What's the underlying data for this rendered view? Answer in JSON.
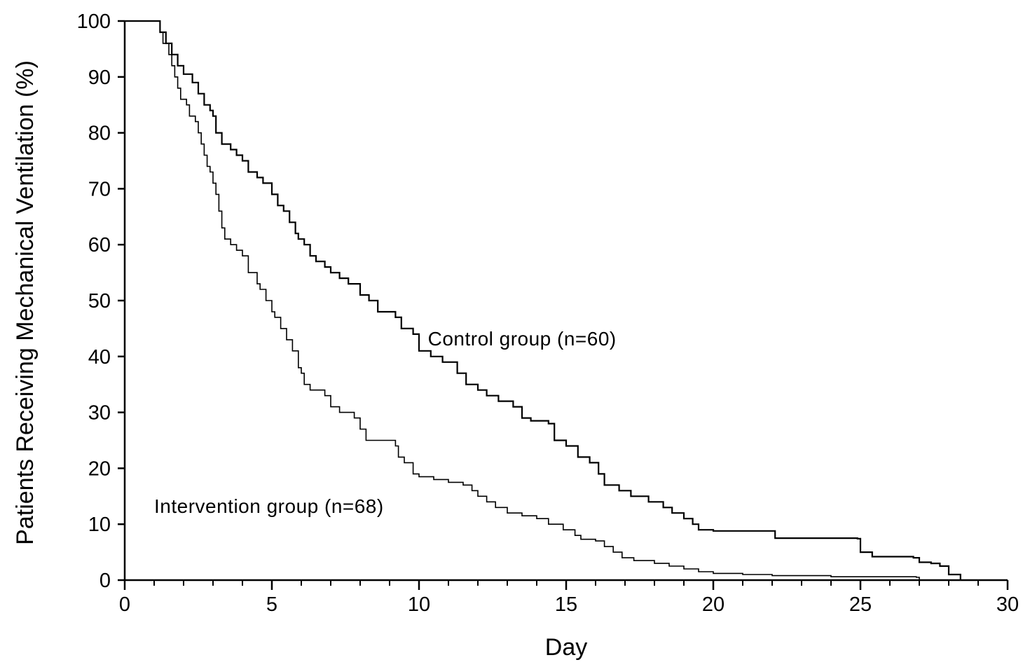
{
  "chart_data": {
    "type": "line",
    "subtype": "kaplan-meier-step",
    "title": "",
    "xlabel": "Day",
    "ylabel": "Patients Receiving Mechanical Ventilation (%)",
    "xlim": [
      0,
      30
    ],
    "ylim": [
      0,
      100
    ],
    "xticks": [
      "0",
      "5",
      "10",
      "15",
      "20",
      "25",
      "30"
    ],
    "yticks": [
      "0",
      "10",
      "20",
      "30",
      "40",
      "50",
      "60",
      "70",
      "80",
      "90",
      "100"
    ],
    "grid": false,
    "legend": "none",
    "annotations": [
      {
        "text": "Control group (n=60)",
        "series": "Control group",
        "x": 10.3,
        "y": 42
      },
      {
        "text": "Intervention group (n=68)",
        "series": "Intervention group",
        "x": 1.0,
        "y": 12
      }
    ],
    "series": [
      {
        "name": "Control group",
        "n": 60,
        "color": "#000000",
        "points": [
          [
            0,
            100
          ],
          [
            1.1,
            100
          ],
          [
            1.2,
            98
          ],
          [
            1.4,
            96
          ],
          [
            1.6,
            94
          ],
          [
            1.8,
            92
          ],
          [
            2.0,
            90.5
          ],
          [
            2.3,
            89
          ],
          [
            2.5,
            87
          ],
          [
            2.7,
            85
          ],
          [
            2.9,
            84
          ],
          [
            3.0,
            83
          ],
          [
            3.1,
            80
          ],
          [
            3.3,
            78
          ],
          [
            3.6,
            77
          ],
          [
            3.8,
            76
          ],
          [
            4.0,
            75
          ],
          [
            4.2,
            73
          ],
          [
            4.5,
            72
          ],
          [
            4.7,
            71
          ],
          [
            5.0,
            69
          ],
          [
            5.2,
            67
          ],
          [
            5.4,
            66
          ],
          [
            5.6,
            64
          ],
          [
            5.8,
            62
          ],
          [
            5.9,
            61
          ],
          [
            6.1,
            60
          ],
          [
            6.3,
            58
          ],
          [
            6.5,
            57
          ],
          [
            6.8,
            56
          ],
          [
            7.0,
            55
          ],
          [
            7.3,
            54
          ],
          [
            7.6,
            53
          ],
          [
            8.0,
            51
          ],
          [
            8.3,
            50
          ],
          [
            8.6,
            48
          ],
          [
            9.0,
            48
          ],
          [
            9.2,
            47
          ],
          [
            9.4,
            45
          ],
          [
            9.8,
            44
          ],
          [
            10.0,
            41
          ],
          [
            10.4,
            40
          ],
          [
            10.8,
            39
          ],
          [
            11.3,
            37
          ],
          [
            11.6,
            35
          ],
          [
            12.0,
            34
          ],
          [
            12.3,
            33
          ],
          [
            12.7,
            32
          ],
          [
            13.2,
            31
          ],
          [
            13.5,
            29
          ],
          [
            13.8,
            28.5
          ],
          [
            14.4,
            28
          ],
          [
            14.6,
            25
          ],
          [
            15.0,
            24
          ],
          [
            15.4,
            22
          ],
          [
            15.8,
            21
          ],
          [
            16.1,
            19
          ],
          [
            16.3,
            17
          ],
          [
            16.8,
            16
          ],
          [
            17.2,
            15
          ],
          [
            17.8,
            14
          ],
          [
            18.3,
            13
          ],
          [
            18.6,
            12
          ],
          [
            19.0,
            11
          ],
          [
            19.3,
            10
          ],
          [
            19.5,
            9
          ],
          [
            20.0,
            8.8
          ],
          [
            22.0,
            8.8
          ],
          [
            22.1,
            7.5
          ],
          [
            24.9,
            7.4
          ],
          [
            25.0,
            5
          ],
          [
            25.4,
            4.2
          ],
          [
            26.0,
            4.2
          ],
          [
            26.8,
            4.0
          ],
          [
            27.0,
            3.2
          ],
          [
            27.4,
            3.0
          ],
          [
            27.7,
            2.5
          ],
          [
            28.0,
            1.0
          ],
          [
            28.3,
            1.0
          ],
          [
            28.4,
            0
          ]
        ]
      },
      {
        "name": "Intervention group",
        "n": 68,
        "color": "#000000",
        "points": [
          [
            0,
            100
          ],
          [
            1.1,
            100
          ],
          [
            1.2,
            98
          ],
          [
            1.3,
            96
          ],
          [
            1.5,
            94
          ],
          [
            1.6,
            92
          ],
          [
            1.7,
            90
          ],
          [
            1.8,
            88
          ],
          [
            1.9,
            86
          ],
          [
            2.1,
            85
          ],
          [
            2.2,
            83
          ],
          [
            2.4,
            82
          ],
          [
            2.5,
            80
          ],
          [
            2.6,
            78
          ],
          [
            2.7,
            76
          ],
          [
            2.8,
            74
          ],
          [
            2.9,
            73
          ],
          [
            3.0,
            71
          ],
          [
            3.1,
            69
          ],
          [
            3.2,
            66
          ],
          [
            3.3,
            63
          ],
          [
            3.4,
            61
          ],
          [
            3.6,
            60
          ],
          [
            3.8,
            59
          ],
          [
            4.0,
            58
          ],
          [
            4.2,
            55
          ],
          [
            4.5,
            53
          ],
          [
            4.6,
            52
          ],
          [
            4.8,
            50
          ],
          [
            5.0,
            48
          ],
          [
            5.1,
            47
          ],
          [
            5.3,
            45
          ],
          [
            5.5,
            43
          ],
          [
            5.7,
            41
          ],
          [
            5.9,
            38
          ],
          [
            6.0,
            37
          ],
          [
            6.1,
            35
          ],
          [
            6.3,
            34
          ],
          [
            6.8,
            33
          ],
          [
            7.0,
            31
          ],
          [
            7.3,
            30
          ],
          [
            7.8,
            29
          ],
          [
            8.0,
            27
          ],
          [
            8.2,
            25
          ],
          [
            9.0,
            25
          ],
          [
            9.2,
            24
          ],
          [
            9.3,
            22
          ],
          [
            9.5,
            21
          ],
          [
            9.8,
            19
          ],
          [
            10.0,
            18.5
          ],
          [
            10.5,
            18
          ],
          [
            11.0,
            17.5
          ],
          [
            11.5,
            17
          ],
          [
            11.8,
            16
          ],
          [
            12.0,
            15
          ],
          [
            12.3,
            14
          ],
          [
            12.6,
            13
          ],
          [
            13.0,
            12
          ],
          [
            13.5,
            11.5
          ],
          [
            14.0,
            11
          ],
          [
            14.4,
            10
          ],
          [
            14.9,
            9
          ],
          [
            15.3,
            8
          ],
          [
            15.5,
            7.3
          ],
          [
            16.0,
            7
          ],
          [
            16.3,
            6
          ],
          [
            16.6,
            5
          ],
          [
            16.9,
            4
          ],
          [
            17.3,
            3.5
          ],
          [
            18.0,
            3
          ],
          [
            18.5,
            2.5
          ],
          [
            19.0,
            2
          ],
          [
            19.5,
            1.5
          ],
          [
            20.0,
            1.2
          ],
          [
            21.0,
            1
          ],
          [
            22.0,
            0.8
          ],
          [
            24.0,
            0.6
          ],
          [
            26.9,
            0.5
          ],
          [
            27.0,
            0
          ]
        ]
      }
    ]
  }
}
